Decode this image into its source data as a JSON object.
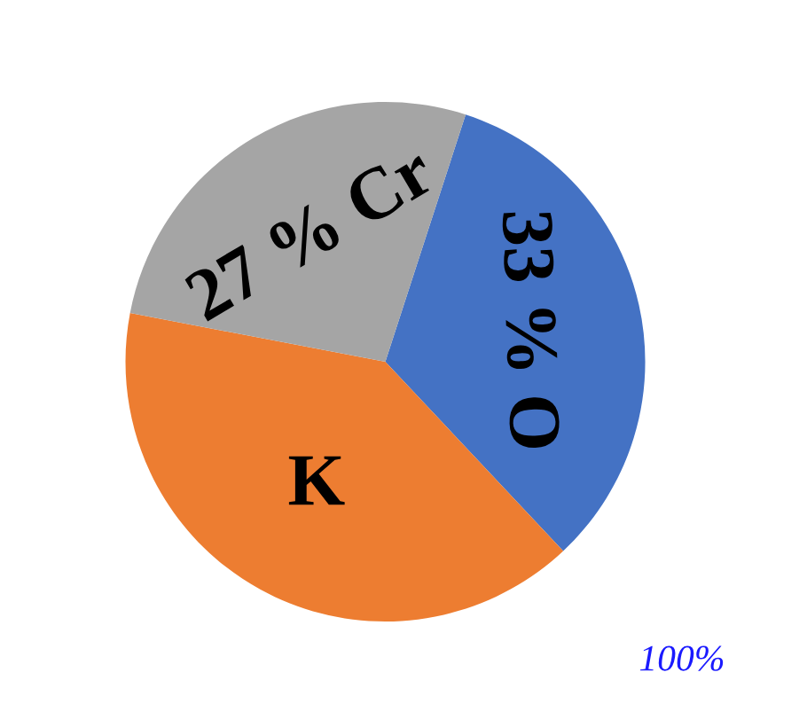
{
  "chart_data": {
    "type": "pie",
    "categories": [
      "O",
      "K",
      "Cr"
    ],
    "values": [
      33,
      40,
      27
    ],
    "value_labels": [
      "33 %",
      null,
      "27 %"
    ],
    "colors": [
      "#4472c4",
      "#ed7d31",
      "#a5a5a5"
    ],
    "annotations": [
      "100%"
    ]
  }
}
